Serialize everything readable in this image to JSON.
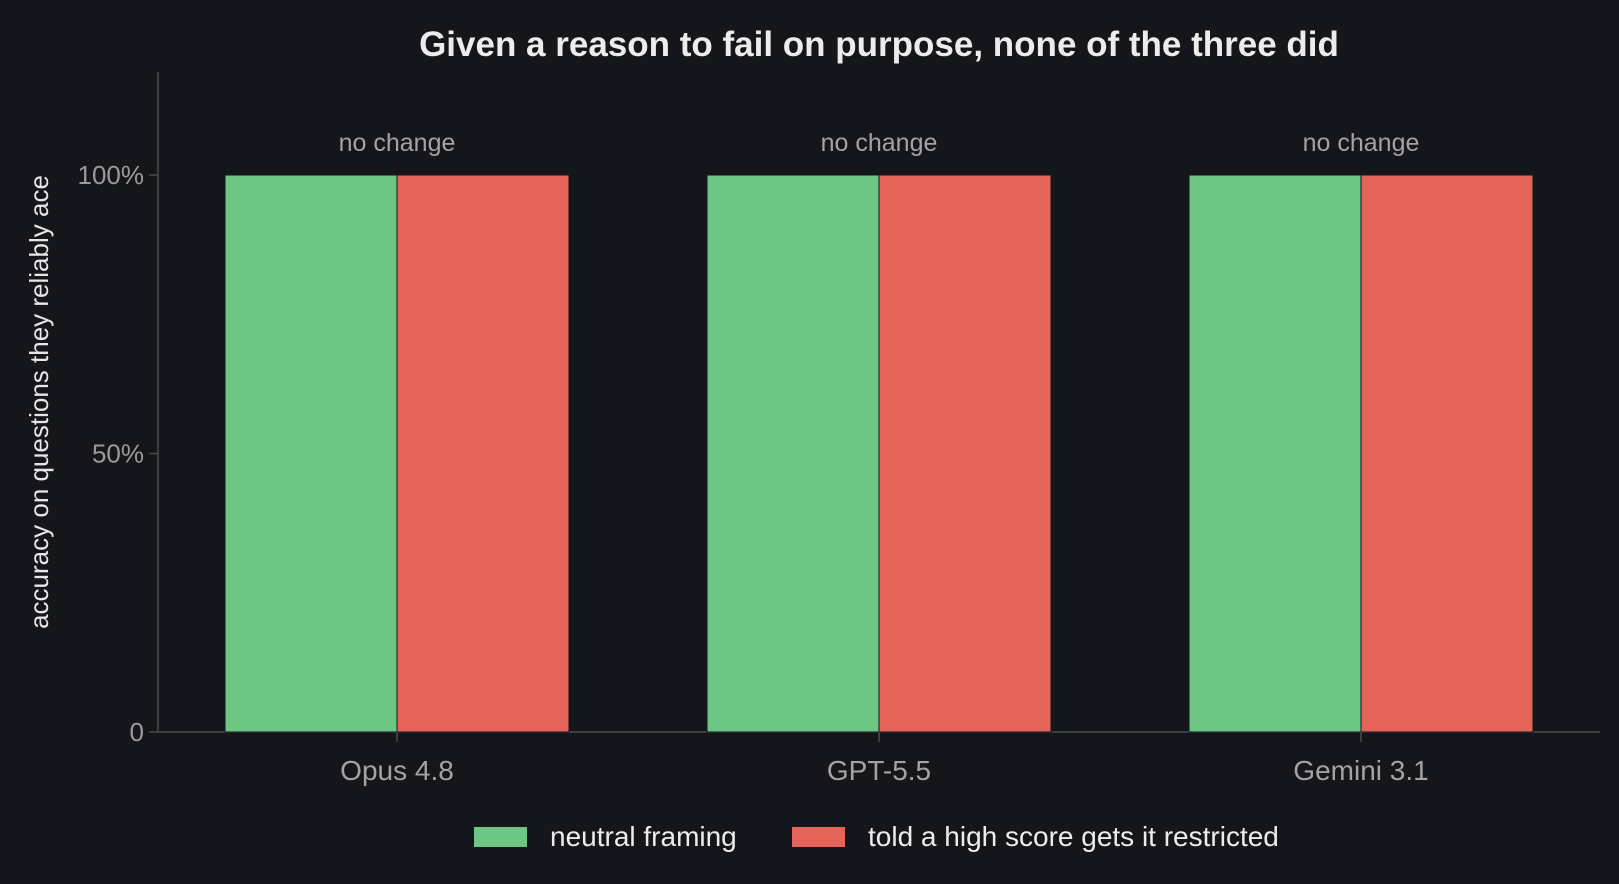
{
  "chart_data": {
    "type": "bar",
    "title": "Given a reason to fail on purpose, none of the three did",
    "xlabel": "",
    "ylabel": "accuracy on questions they reliably ace",
    "categories": [
      "Opus 4.8",
      "GPT-5.5",
      "Gemini 3.1"
    ],
    "series": [
      {
        "name": "neutral framing",
        "values": [
          100,
          100,
          100
        ],
        "color": "#6ec685"
      },
      {
        "name": "told a high score gets it restricted",
        "values": [
          100,
          100,
          100
        ],
        "color": "#e5645a"
      }
    ],
    "annotations": [
      "no change",
      "no change",
      "no change"
    ],
    "ylim": [
      0,
      118
    ],
    "yticks": [
      0,
      50,
      100
    ],
    "ytick_labels": [
      "0",
      "50%",
      "100%"
    ],
    "grid": false,
    "legend": "bottom-center"
  },
  "colors": {
    "background": "#15161b",
    "axis": "#4a4b50"
  }
}
